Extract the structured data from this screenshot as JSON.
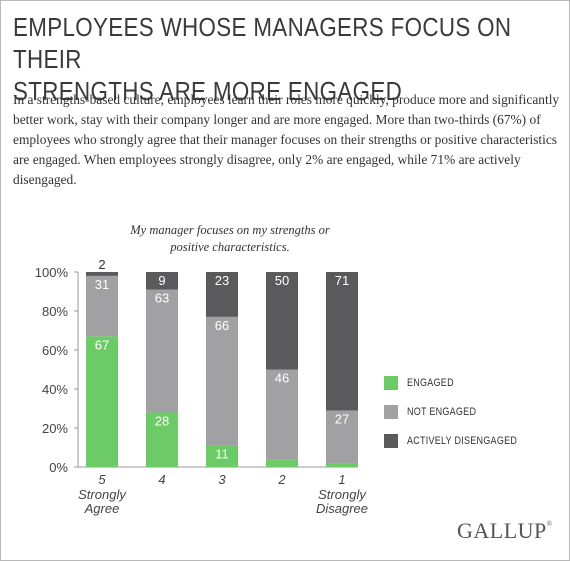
{
  "title_line1": "EMPLOYEES WHOSE MANAGERS FOCUS ON THEIR",
  "title_line2": "STRENGTHS ARE MORE ENGAGED",
  "intro": "In a strengths-based culture, employees learn their roles more quickly, produce more and significantly better work, stay with their company longer and are more engaged. More than two-thirds (67%) of employees who strongly agree that their manager focuses on their strengths or positive characteristics are engaged. When employees strongly disagree, only 2% are engaged, while 71% are actively disengaged.",
  "subtitle_line1": "My manager focuses on my strengths or",
  "subtitle_line2": "positive characteristics.",
  "logo": "GALLUP",
  "logo_mark": "®",
  "colors": {
    "engaged": "#6ccb66",
    "not_engaged": "#a1a1a3",
    "actively_disengaged": "#5a5a5d"
  },
  "chart_data": {
    "type": "bar",
    "stacked": true,
    "percent": true,
    "title": "My manager focuses on my strengths or positive characteristics.",
    "categories": [
      "5",
      "4",
      "3",
      "2",
      "1"
    ],
    "category_sublabels": [
      [
        "Strongly",
        "Agree"
      ],
      [],
      [],
      [],
      [
        "Strongly",
        "Disagree"
      ]
    ],
    "ylim": [
      0,
      100
    ],
    "yticks": [
      "0%",
      "20%",
      "40%",
      "60%",
      "80%",
      "100%"
    ],
    "series": [
      {
        "name": "ENGAGED",
        "values": [
          67,
          28,
          11,
          4,
          2
        ],
        "labels": [
          "67",
          "28",
          "11",
          "",
          ""
        ]
      },
      {
        "name": "NOT ENGAGED",
        "values": [
          31,
          63,
          66,
          46,
          27
        ],
        "labels": [
          "31",
          "63",
          "66",
          "46",
          "27"
        ]
      },
      {
        "name": "ACTIVELY DISENGAGED",
        "values": [
          2,
          9,
          23,
          50,
          71
        ],
        "labels": [
          "2",
          "9",
          "23",
          "50",
          "71"
        ]
      }
    ],
    "legend_position": "right"
  }
}
